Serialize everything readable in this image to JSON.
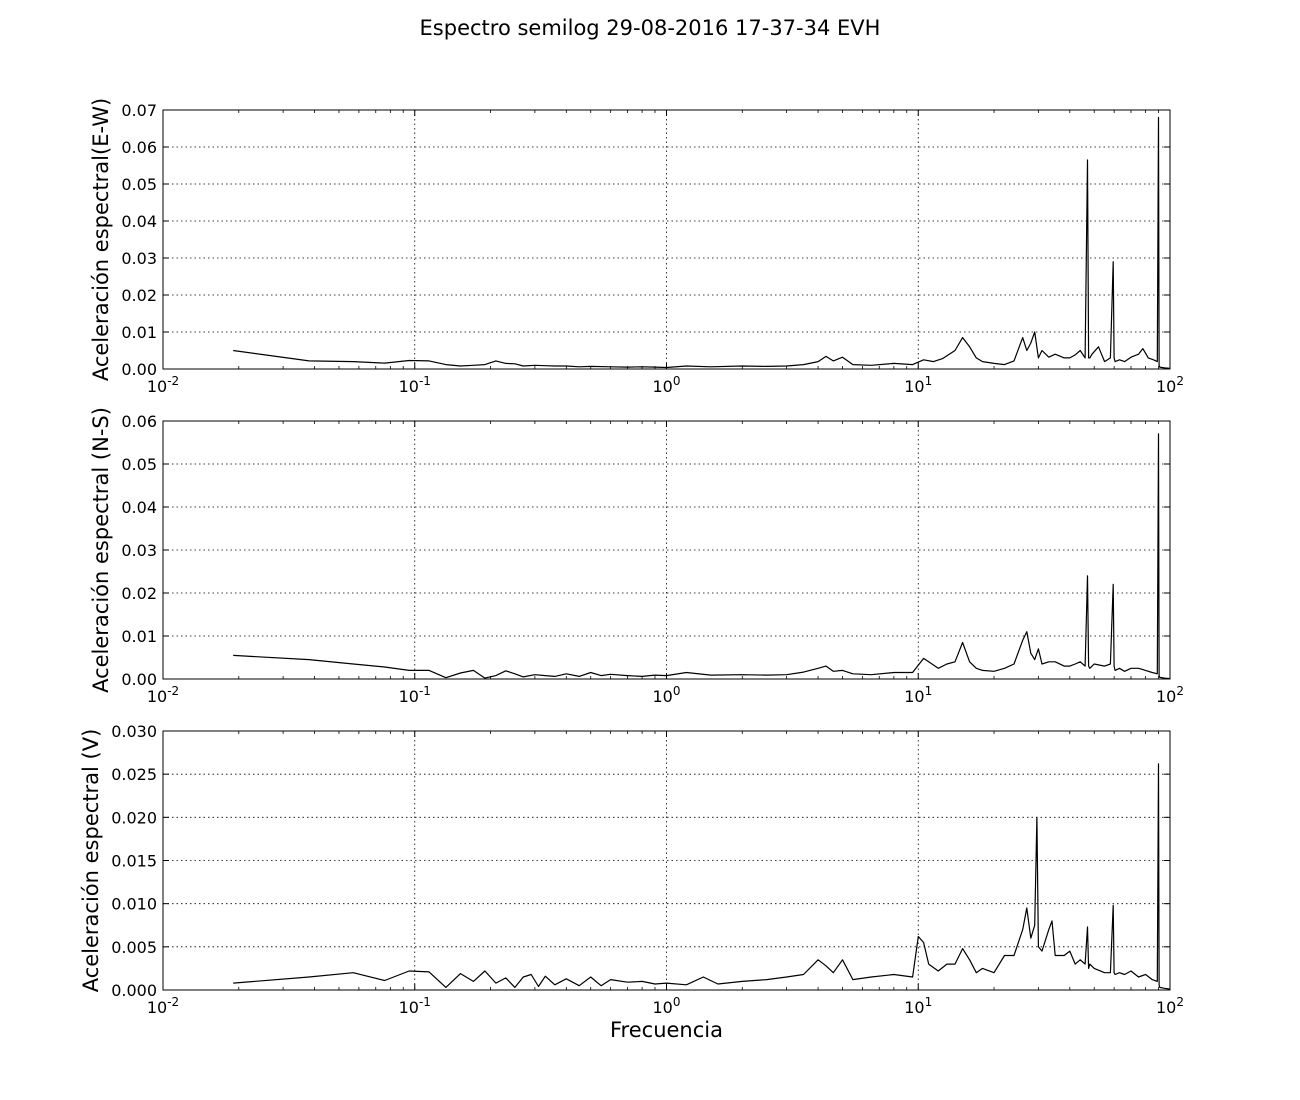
{
  "figure": {
    "title": "Espectro semilog 29-08-2016 17-37-34 EVH",
    "xlabel": "Frecuencia"
  },
  "chart_data": [
    {
      "type": "line",
      "xscale": "log",
      "xlim": [
        0.01,
        100
      ],
      "ylim": [
        0,
        0.07
      ],
      "yticks": [
        "0.00",
        "0.01",
        "0.02",
        "0.03",
        "0.04",
        "0.05",
        "0.06",
        "0.07"
      ],
      "xticks": [
        {
          "base": "10",
          "exp": "-2"
        },
        {
          "base": "10",
          "exp": "-1"
        },
        {
          "base": "10",
          "exp": "0"
        },
        {
          "base": "10",
          "exp": "1"
        },
        {
          "base": "10",
          "exp": "2"
        }
      ],
      "ylabel": "Aceleración espectral(E-W)",
      "grid": true,
      "line_color": "#000000",
      "x": [
        0.019,
        0.038,
        0.057,
        0.076,
        0.095,
        0.114,
        0.133,
        0.152,
        0.171,
        0.19,
        0.21,
        0.23,
        0.25,
        0.27,
        0.3,
        0.33,
        0.36,
        0.4,
        0.45,
        0.5,
        0.6,
        0.7,
        0.8,
        0.9,
        1.0,
        1.2,
        1.5,
        2.0,
        2.5,
        3.0,
        3.5,
        4.0,
        4.3,
        4.6,
        5.0,
        5.5,
        6.5,
        8.0,
        9.5,
        10.5,
        11.5,
        12.5,
        14.0,
        15.0,
        16.0,
        17.0,
        18.0,
        20.0,
        22.0,
        24.0,
        26.0,
        27.0,
        28.0,
        29.0,
        30.0,
        31.0,
        33.0,
        35.0,
        38.0,
        40.0,
        42.0,
        44.0,
        46.0,
        47.0,
        47.5,
        48.0,
        49.0,
        52.0,
        55.0,
        58.0,
        59.5,
        60.0,
        60.5,
        63.0,
        66.0,
        70.0,
        75.0,
        78.0,
        82.0,
        86.0,
        89.0,
        90.0,
        90.5,
        91.0,
        95.0,
        100.0
      ],
      "y": [
        0.005,
        0.0022,
        0.002,
        0.0016,
        0.0023,
        0.0022,
        0.0012,
        0.0008,
        0.001,
        0.0012,
        0.0022,
        0.0015,
        0.0014,
        0.0008,
        0.001,
        0.0009,
        0.0008,
        0.0008,
        0.0006,
        0.0007,
        0.0006,
        0.0005,
        0.0006,
        0.0005,
        0.0004,
        0.0008,
        0.0006,
        0.0008,
        0.0007,
        0.0008,
        0.0012,
        0.002,
        0.0034,
        0.0022,
        0.0032,
        0.0012,
        0.001,
        0.0015,
        0.0012,
        0.0025,
        0.002,
        0.0028,
        0.005,
        0.0085,
        0.006,
        0.003,
        0.002,
        0.0015,
        0.0012,
        0.0022,
        0.0085,
        0.005,
        0.007,
        0.01,
        0.003,
        0.005,
        0.0032,
        0.004,
        0.003,
        0.003,
        0.0038,
        0.005,
        0.003,
        0.0565,
        0.003,
        0.003,
        0.004,
        0.006,
        0.002,
        0.003,
        0.029,
        0.003,
        0.002,
        0.0025,
        0.002,
        0.0032,
        0.004,
        0.0055,
        0.003,
        0.0025,
        0.002,
        0.068,
        0.001,
        0.0005,
        0.0003,
        0.0002
      ]
    },
    {
      "type": "line",
      "xscale": "log",
      "xlim": [
        0.01,
        100
      ],
      "ylim": [
        0,
        0.06
      ],
      "yticks": [
        "0.00",
        "0.01",
        "0.02",
        "0.03",
        "0.04",
        "0.05",
        "0.06"
      ],
      "xticks": [
        {
          "base": "10",
          "exp": "-2"
        },
        {
          "base": "10",
          "exp": "-1"
        },
        {
          "base": "10",
          "exp": "0"
        },
        {
          "base": "10",
          "exp": "1"
        },
        {
          "base": "10",
          "exp": "2"
        }
      ],
      "ylabel": "Aceleración espectral (N-S)",
      "grid": true,
      "line_color": "#000000",
      "x": [
        0.019,
        0.038,
        0.057,
        0.076,
        0.095,
        0.114,
        0.133,
        0.152,
        0.171,
        0.19,
        0.21,
        0.23,
        0.25,
        0.27,
        0.3,
        0.33,
        0.36,
        0.4,
        0.45,
        0.5,
        0.55,
        0.6,
        0.7,
        0.8,
        0.9,
        1.0,
        1.2,
        1.5,
        2.0,
        2.5,
        3.0,
        3.5,
        4.0,
        4.3,
        4.6,
        5.0,
        5.5,
        6.5,
        8.0,
        9.5,
        10.5,
        11.0,
        12.0,
        13.0,
        14.0,
        15.0,
        16.0,
        17.0,
        18.0,
        20.0,
        22.0,
        24.0,
        26.0,
        27.0,
        28.0,
        29.0,
        30.0,
        31.0,
        33.0,
        35.0,
        38.0,
        40.0,
        42.0,
        44.0,
        46.0,
        47.0,
        47.5,
        48.0,
        50.0,
        55.0,
        58.0,
        59.5,
        60.0,
        60.5,
        63.0,
        66.0,
        70.0,
        75.0,
        80.0,
        85.0,
        89.0,
        90.0,
        90.5,
        91.0,
        95.0,
        100.0
      ],
      "y": [
        0.0055,
        0.0045,
        0.0035,
        0.0028,
        0.002,
        0.002,
        0.0003,
        0.0014,
        0.002,
        0.0002,
        0.0008,
        0.0019,
        0.0012,
        0.0005,
        0.001,
        0.0008,
        0.0006,
        0.0012,
        0.0006,
        0.0015,
        0.0008,
        0.0011,
        0.0008,
        0.0006,
        0.0009,
        0.0008,
        0.0015,
        0.0009,
        0.001,
        0.0009,
        0.001,
        0.0016,
        0.0025,
        0.003,
        0.0018,
        0.002,
        0.0012,
        0.001,
        0.0015,
        0.0015,
        0.0048,
        0.004,
        0.0025,
        0.0035,
        0.004,
        0.0085,
        0.004,
        0.0025,
        0.002,
        0.0018,
        0.0025,
        0.0035,
        0.009,
        0.011,
        0.006,
        0.0045,
        0.007,
        0.0035,
        0.004,
        0.004,
        0.003,
        0.003,
        0.0035,
        0.004,
        0.003,
        0.024,
        0.003,
        0.0025,
        0.0035,
        0.003,
        0.0035,
        0.022,
        0.003,
        0.002,
        0.0025,
        0.0018,
        0.0025,
        0.0025,
        0.002,
        0.0015,
        0.0012,
        0.057,
        0.0008,
        0.0004,
        0.0002,
        0.0001
      ]
    },
    {
      "type": "line",
      "xscale": "log",
      "xlim": [
        0.01,
        100
      ],
      "ylim": [
        0,
        0.03
      ],
      "yticks": [
        "0.000",
        "0.005",
        "0.010",
        "0.015",
        "0.020",
        "0.025",
        "0.030"
      ],
      "xticks": [
        {
          "base": "10",
          "exp": "-2"
        },
        {
          "base": "10",
          "exp": "-1"
        },
        {
          "base": "10",
          "exp": "0"
        },
        {
          "base": "10",
          "exp": "1"
        },
        {
          "base": "10",
          "exp": "2"
        }
      ],
      "ylabel": "Aceleración espectral (V)",
      "grid": true,
      "line_color": "#000000",
      "x": [
        0.019,
        0.038,
        0.057,
        0.076,
        0.095,
        0.114,
        0.133,
        0.152,
        0.171,
        0.19,
        0.21,
        0.23,
        0.25,
        0.27,
        0.29,
        0.31,
        0.33,
        0.36,
        0.4,
        0.45,
        0.5,
        0.55,
        0.6,
        0.7,
        0.8,
        0.9,
        1.0,
        1.2,
        1.4,
        1.6,
        2.0,
        2.5,
        3.0,
        3.5,
        4.0,
        4.3,
        4.6,
        5.0,
        5.5,
        6.5,
        8.0,
        9.5,
        10.0,
        10.5,
        11.0,
        12.0,
        13.0,
        14.0,
        15.0,
        16.0,
        17.0,
        18.0,
        20.0,
        22.0,
        24.0,
        26.0,
        27.0,
        28.0,
        29.0,
        29.6,
        30.0,
        31.0,
        33.0,
        34.0,
        35.0,
        38.0,
        40.0,
        42.0,
        44.0,
        46.0,
        47.0,
        47.5,
        48.0,
        50.0,
        55.0,
        58.0,
        59.5,
        60.0,
        60.5,
        63.0,
        66.0,
        70.0,
        75.0,
        80.0,
        85.0,
        89.0,
        90.0,
        90.5,
        91.0,
        95.0,
        100.0
      ],
      "y": [
        0.0008,
        0.0015,
        0.002,
        0.0011,
        0.0022,
        0.0021,
        0.0003,
        0.0019,
        0.001,
        0.0022,
        0.0008,
        0.0014,
        0.0003,
        0.0015,
        0.0018,
        0.0004,
        0.0016,
        0.0006,
        0.0013,
        0.0005,
        0.0015,
        0.0005,
        0.0012,
        0.0009,
        0.001,
        0.0007,
        0.0008,
        0.0006,
        0.0015,
        0.0007,
        0.001,
        0.0012,
        0.0015,
        0.0018,
        0.0035,
        0.0028,
        0.002,
        0.0035,
        0.0012,
        0.0015,
        0.0018,
        0.0015,
        0.0062,
        0.0055,
        0.003,
        0.0022,
        0.003,
        0.003,
        0.0048,
        0.0035,
        0.002,
        0.0025,
        0.002,
        0.004,
        0.004,
        0.007,
        0.0095,
        0.006,
        0.0075,
        0.02,
        0.005,
        0.0045,
        0.007,
        0.008,
        0.004,
        0.004,
        0.0045,
        0.003,
        0.0035,
        0.003,
        0.0073,
        0.0025,
        0.003,
        0.0025,
        0.002,
        0.002,
        0.0098,
        0.002,
        0.0018,
        0.002,
        0.0018,
        0.0022,
        0.0015,
        0.0018,
        0.0012,
        0.001,
        0.0262,
        0.0006,
        0.0003,
        0.0002,
        0.0001
      ]
    }
  ]
}
